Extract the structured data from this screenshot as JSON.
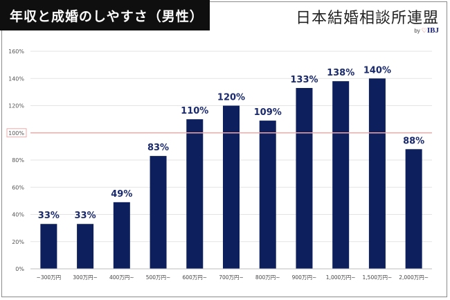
{
  "header": {
    "title": "年収と成婚のしやすさ（男性）",
    "brand_name": "日本結婚相談所連盟",
    "brand_by": "by",
    "brand_logo": "IBJ"
  },
  "colors": {
    "bar": "#0d1f5c",
    "label": "#1a2a6c",
    "reference_line": "#f4a7a7",
    "grid": "#e3e3e3"
  },
  "chart_data": {
    "type": "bar",
    "categories": [
      "~300万円",
      "300万円~",
      "400万円~",
      "500万円~",
      "600万円~",
      "700万円~",
      "800万円~",
      "900万円~",
      "1,000万円~",
      "1,500万円~",
      "2,000万円~"
    ],
    "values": [
      33,
      33,
      49,
      83,
      110,
      120,
      109,
      133,
      138,
      140,
      88
    ],
    "data_labels": [
      "33%",
      "33%",
      "49%",
      "83%",
      "110%",
      "120%",
      "109%",
      "133%",
      "138%",
      "140%",
      "88%"
    ],
    "yticks": [
      "0%",
      "20%",
      "40%",
      "60%",
      "80%",
      "100%",
      "120%",
      "140%",
      "160%"
    ],
    "ylim": [
      0,
      160
    ],
    "reference_line": 100,
    "grid": true
  }
}
